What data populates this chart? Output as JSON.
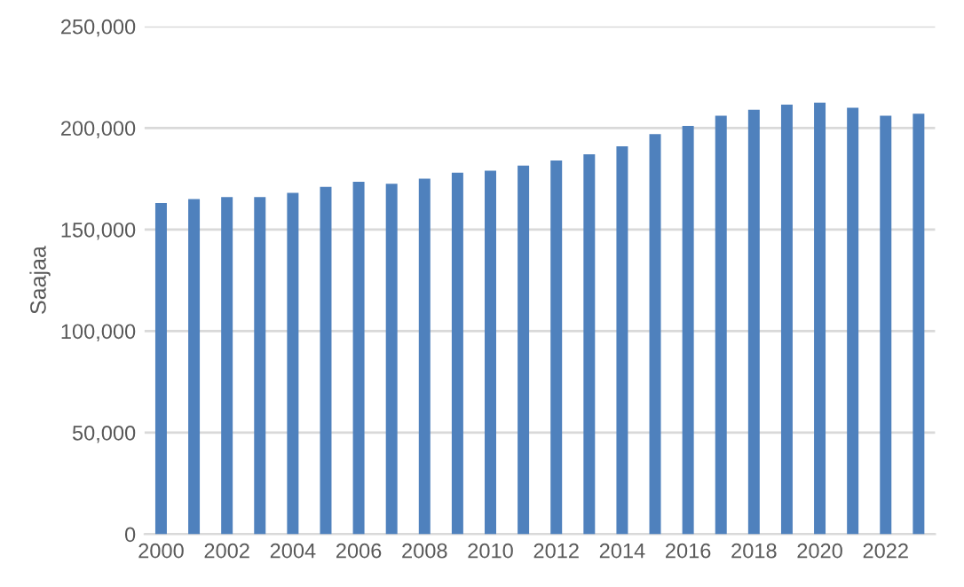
{
  "chart_data": {
    "type": "bar",
    "ylabel": "Saajaa",
    "categories": [
      "2000",
      null,
      "2002",
      null,
      "2004",
      null,
      "2006",
      null,
      "2008",
      null,
      "2010",
      null,
      "2012",
      null,
      "2014",
      null,
      "2016",
      null,
      "2018",
      null,
      "2020",
      null,
      "2022",
      null
    ],
    "values": [
      163000,
      165000,
      166000,
      166000,
      168000,
      171000,
      173500,
      172500,
      175000,
      178000,
      179000,
      181500,
      184000,
      187000,
      191000,
      197000,
      201000,
      206000,
      209000,
      211500,
      212500,
      210000,
      206000,
      207000
    ],
    "color": "#4f81bd",
    "ylim": [
      0,
      250000
    ],
    "yticks": [
      {
        "value": 0,
        "label": "0"
      },
      {
        "value": 50000,
        "label": "50,000"
      },
      {
        "value": 100000,
        "label": "100,000"
      },
      {
        "value": 150000,
        "label": "150,000"
      },
      {
        "value": 200000,
        "label": "200,000"
      },
      {
        "value": 250000,
        "label": "250,000"
      }
    ],
    "grid": "y",
    "legend": false
  }
}
